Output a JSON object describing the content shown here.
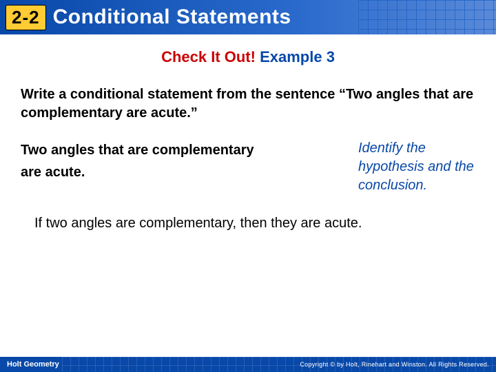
{
  "header": {
    "badge": "2-2",
    "title": "Conditional Statements"
  },
  "subtitle": {
    "part1": "Check It Out!",
    "part2": "Example 3"
  },
  "prompt": "Write a conditional statement from the sentence “Two angles that are complementary are acute.”",
  "work": {
    "line1": "Two angles that are complementary",
    "line2": "are acute.",
    "note": "Identify the hypothesis and the conclusion."
  },
  "answer": "If two angles are complementary, then they are acute.",
  "footer": {
    "left": "Holt Geometry",
    "right": "Copyright © by Holt, Rinehart and Winston. All Rights Reserved."
  },
  "colors": {
    "header_bg_left": "#0848a8",
    "header_bg_right": "#5a8ad8",
    "badge_bg": "#ffcc33",
    "red": "#cc0000",
    "blue": "#0848a8",
    "text": "#000000",
    "white": "#ffffff"
  }
}
